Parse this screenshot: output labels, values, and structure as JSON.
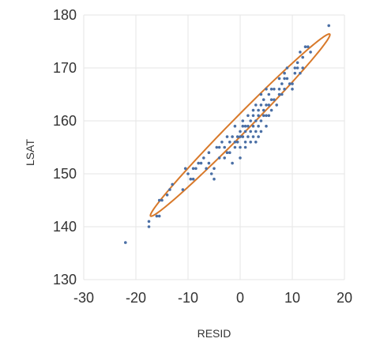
{
  "chart_data": {
    "type": "scatter",
    "xlabel": "RESID",
    "ylabel": "LSAT",
    "xlim": [
      -30,
      20
    ],
    "ylim": [
      130,
      180
    ],
    "xticks": [
      -30,
      -20,
      -10,
      0,
      10,
      20
    ],
    "yticks": [
      130,
      140,
      150,
      160,
      170,
      180
    ],
    "grid": true,
    "colors": {
      "points": "#4a6fa5",
      "ellipse": "#d8792a",
      "grid": "#e6e6e6",
      "text": "#333333"
    },
    "series": [
      {
        "points": [
          [
            -22,
            137
          ],
          [
            -17.5,
            140
          ],
          [
            -17.5,
            141
          ],
          [
            -16,
            142
          ],
          [
            -15.5,
            142
          ],
          [
            -15.5,
            145
          ],
          [
            -15,
            145
          ],
          [
            -14,
            146
          ],
          [
            -13.5,
            147
          ],
          [
            -13,
            148
          ],
          [
            -11,
            147
          ],
          [
            -10.5,
            151
          ],
          [
            -10,
            150
          ],
          [
            -9.5,
            149
          ],
          [
            -9,
            151
          ],
          [
            -9,
            149
          ],
          [
            -8.5,
            151
          ],
          [
            -8,
            152
          ],
          [
            -7.5,
            152
          ],
          [
            -7,
            153
          ],
          [
            -6.5,
            151
          ],
          [
            -6,
            154
          ],
          [
            -6,
            152
          ],
          [
            -5.5,
            150
          ],
          [
            -5,
            149
          ],
          [
            -5,
            151
          ],
          [
            -4.5,
            155
          ],
          [
            -4,
            155
          ],
          [
            -4,
            153
          ],
          [
            -3.5,
            156
          ],
          [
            -3,
            155
          ],
          [
            -3,
            153
          ],
          [
            -2.5,
            157
          ],
          [
            -2.5,
            154
          ],
          [
            -2,
            156
          ],
          [
            -2,
            154
          ],
          [
            -1.5,
            157
          ],
          [
            -1.5,
            152
          ],
          [
            -1,
            159
          ],
          [
            -1,
            156
          ],
          [
            -1,
            155
          ],
          [
            -0.5,
            157
          ],
          [
            -0.5,
            156
          ],
          [
            0,
            158
          ],
          [
            0,
            157
          ],
          [
            0,
            155
          ],
          [
            0,
            153
          ],
          [
            0.5,
            160
          ],
          [
            0.5,
            159
          ],
          [
            0.5,
            157
          ],
          [
            1,
            159
          ],
          [
            1,
            158
          ],
          [
            1,
            156
          ],
          [
            1,
            155
          ],
          [
            1.5,
            161
          ],
          [
            1.5,
            159
          ],
          [
            1.5,
            157
          ],
          [
            2,
            160
          ],
          [
            2,
            158
          ],
          [
            2,
            156
          ],
          [
            2.5,
            162
          ],
          [
            2.5,
            161
          ],
          [
            2.5,
            159
          ],
          [
            2.5,
            157
          ],
          [
            3,
            163
          ],
          [
            3,
            160
          ],
          [
            3,
            158
          ],
          [
            3,
            156
          ],
          [
            3.5,
            162
          ],
          [
            3.5,
            161
          ],
          [
            3.5,
            159
          ],
          [
            3.5,
            157
          ],
          [
            4,
            165
          ],
          [
            4,
            163
          ],
          [
            4,
            160
          ],
          [
            4,
            158
          ],
          [
            4.5,
            164
          ],
          [
            4.5,
            162
          ],
          [
            4.5,
            161
          ],
          [
            5,
            166
          ],
          [
            5,
            163
          ],
          [
            5,
            161
          ],
          [
            5,
            159
          ],
          [
            5.5,
            165
          ],
          [
            5.5,
            163
          ],
          [
            5.5,
            161
          ],
          [
            6,
            166
          ],
          [
            6,
            164
          ],
          [
            6,
            162
          ],
          [
            6.5,
            166
          ],
          [
            6.5,
            164
          ],
          [
            7,
            163
          ],
          [
            7.5,
            168
          ],
          [
            7.5,
            166
          ],
          [
            7.5,
            165
          ],
          [
            8,
            167
          ],
          [
            8,
            165
          ],
          [
            8.5,
            169
          ],
          [
            8.5,
            168
          ],
          [
            8.5,
            166
          ],
          [
            9,
            170
          ],
          [
            9,
            168
          ],
          [
            9.5,
            167
          ],
          [
            10,
            167
          ],
          [
            10,
            166
          ],
          [
            10.5,
            170
          ],
          [
            10.5,
            169
          ],
          [
            11,
            171
          ],
          [
            11,
            170
          ],
          [
            11.5,
            173
          ],
          [
            11.5,
            169
          ],
          [
            12,
            172
          ],
          [
            12,
            170
          ],
          [
            12.5,
            174
          ],
          [
            13,
            174
          ],
          [
            13.5,
            173
          ],
          [
            17,
            178
          ]
        ]
      }
    ],
    "ellipse": {
      "center": [
        0,
        159.2
      ],
      "angle_deg_data": 45,
      "semi_major": 24.3,
      "semi_minor": 1.55
    }
  }
}
